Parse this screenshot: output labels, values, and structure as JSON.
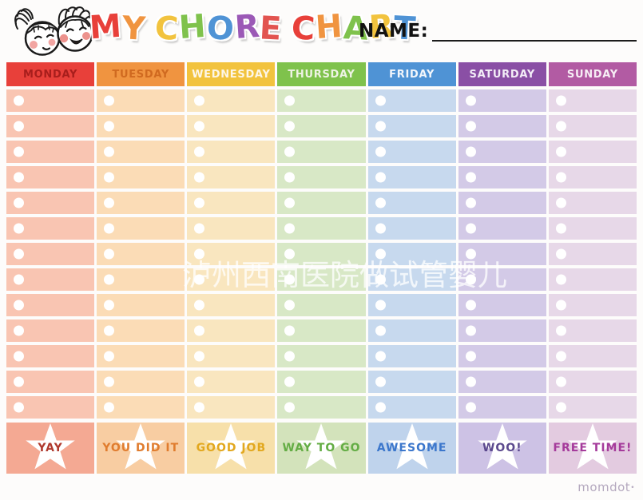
{
  "header": {
    "title_text": "MY CHORE CHART",
    "title_letters": [
      {
        "ch": "M",
        "color": "#e8403a"
      },
      {
        "ch": "Y",
        "color": "#f09440"
      },
      {
        "ch": " "
      },
      {
        "ch": "C",
        "color": "#f2c33e"
      },
      {
        "ch": "H",
        "color": "#7fc24c"
      },
      {
        "ch": "O",
        "color": "#4f93d5"
      },
      {
        "ch": "R",
        "color": "#9b59b6"
      },
      {
        "ch": "E",
        "color": "#e25450"
      },
      {
        "ch": " "
      },
      {
        "ch": "C",
        "color": "#e8403a"
      },
      {
        "ch": "H",
        "color": "#f09440"
      },
      {
        "ch": "A",
        "color": "#7fc24c"
      },
      {
        "ch": "R",
        "color": "#f2c33e"
      },
      {
        "ch": "T",
        "color": "#4f93d5"
      }
    ],
    "name_label": "NAME:",
    "name_value": ""
  },
  "chart": {
    "rows": 13,
    "checkbox_color": "#ffffff",
    "star_color": "#ffffff",
    "days": [
      {
        "label": "MONDAY",
        "header_bg": "#e8403a",
        "header_fg": "#a81e1c",
        "cell_bg": "#f9c5b2",
        "footer_bg": "#f4a993",
        "footer_label": "YAY",
        "footer_fg": "#b03a2e"
      },
      {
        "label": "TUESDAY",
        "header_bg": "#f09440",
        "header_fg": "#d06a20",
        "cell_bg": "#fbdcb6",
        "footer_bg": "#f8cda2",
        "footer_label": "YOU DID IT",
        "footer_fg": "#e07c2e"
      },
      {
        "label": "WEDNESDAY",
        "header_bg": "#f2c33e",
        "header_fg": "#fdf6e8",
        "cell_bg": "#f9e6bf",
        "footer_bg": "#f7e0aa",
        "footer_label": "GOOD JOB",
        "footer_fg": "#e2a81f"
      },
      {
        "label": "THURSDAY",
        "header_bg": "#7fc24c",
        "header_fg": "#eef3e4",
        "cell_bg": "#d8e8c6",
        "footer_bg": "#d3e3bb",
        "footer_label": "WAY TO GO",
        "footer_fg": "#64ad45"
      },
      {
        "label": "FRIDAY",
        "header_bg": "#4f93d5",
        "header_fg": "#f2f6fb",
        "cell_bg": "#c7d9ee",
        "footer_bg": "#bfd3ec",
        "footer_label": "AWESOME",
        "footer_fg": "#3c77cc"
      },
      {
        "label": "SATURDAY",
        "header_bg": "#8a4fa5",
        "header_fg": "#f3edf7",
        "cell_bg": "#d3cae7",
        "footer_bg": "#cdc2e5",
        "footer_label": "WOO!",
        "footer_fg": "#5c4a8e"
      },
      {
        "label": "SUNDAY",
        "header_bg": "#b25ba3",
        "header_fg": "#f7eef5",
        "cell_bg": "#e7d8e8",
        "footer_bg": "#e3cbe0",
        "footer_label": "FREE TIME!",
        "footer_fg": "#a53b9b"
      }
    ]
  },
  "watermark": {
    "text": "泸州西南医院做试管婴儿"
  },
  "brand": {
    "name": "momdot",
    "mark": "•"
  }
}
